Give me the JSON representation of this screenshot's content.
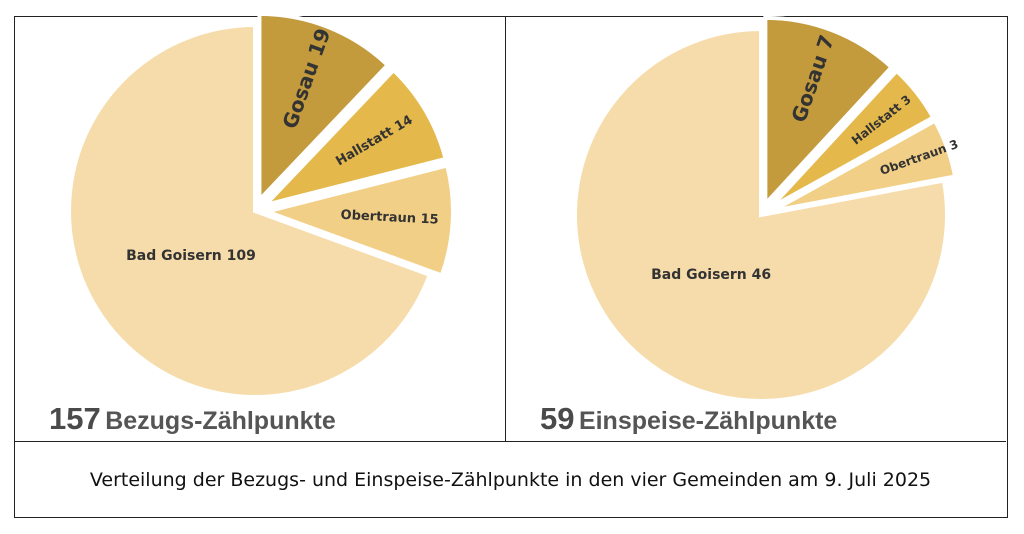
{
  "caption": "Verteilung der Bezugs- und Einspeise-Zählpunkte in den vier Gemeinden am 9. Juli 2025",
  "colors": {
    "gosau": "#c39a3c",
    "hallstatt": "#e4b84a",
    "obertraun": "#f2cf86",
    "bad_goisern": "#f6dcaa"
  },
  "chart_data": [
    {
      "type": "pie",
      "total_value": "157",
      "total_label": "Bezugs-Zählpunkte",
      "slices": [
        {
          "name": "Gosau",
          "value": 19,
          "label": "Gosau 19",
          "color": "#c39a3c"
        },
        {
          "name": "Hallstatt",
          "value": 14,
          "label": "Hallstatt 14",
          "color": "#e4b84a"
        },
        {
          "name": "Obertraun",
          "value": 15,
          "label": "Obertraun 15",
          "color": "#f2cf86"
        },
        {
          "name": "Bad Goisern",
          "value": 109,
          "label": "Bad Goisern 109",
          "color": "#f6dcaa"
        }
      ]
    },
    {
      "type": "pie",
      "total_value": "59",
      "total_label": "Einspeise-Zählpunkte",
      "slices": [
        {
          "name": "Gosau",
          "value": 7,
          "label": "Gosau 7",
          "color": "#c39a3c"
        },
        {
          "name": "Hallstatt",
          "value": 3,
          "label": "Hallstatt 3",
          "color": "#e4b84a"
        },
        {
          "name": "Obertraun",
          "value": 3,
          "label": "Obertraun 3",
          "color": "#f2cf86"
        },
        {
          "name": "Bad Goisern",
          "value": 46,
          "label": "Bad Goisern 46",
          "color": "#f6dcaa"
        }
      ]
    }
  ]
}
